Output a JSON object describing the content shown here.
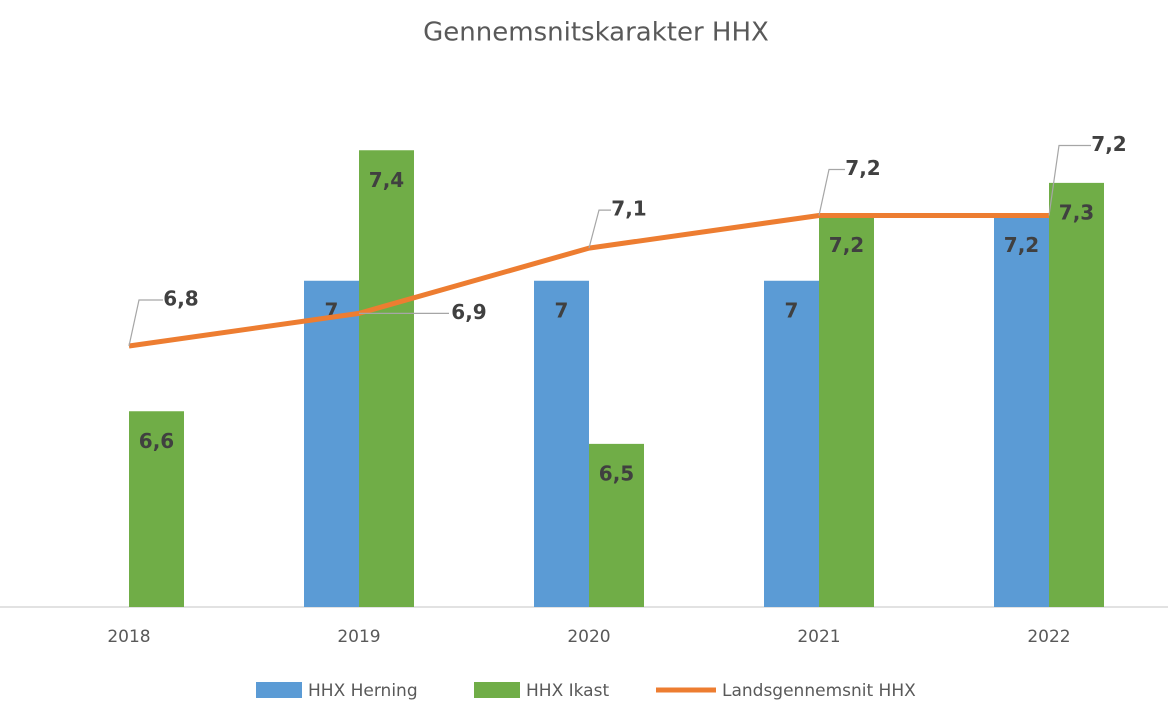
{
  "chart_data": {
    "type": "bar",
    "title": "Gennemsnitskarakter HHX",
    "categories": [
      "2018",
      "2019",
      "2020",
      "2021",
      "2022"
    ],
    "ylim": [
      6,
      7.6
    ],
    "series": [
      {
        "name": "HHX Herning",
        "type": "bar",
        "color": "#5b9bd5",
        "values": [
          null,
          7,
          7,
          7,
          7.2
        ],
        "value_labels": [
          null,
          "7",
          "7",
          "7",
          "7,2"
        ]
      },
      {
        "name": "HHX Ikast",
        "type": "bar",
        "color": "#70ad47",
        "values": [
          6.6,
          7.4,
          6.5,
          7.2,
          7.3
        ],
        "value_labels": [
          "6,6",
          "7,4",
          "6,5",
          "7,2",
          "7,3"
        ]
      },
      {
        "name": "Landsgennemsnit HHX",
        "type": "line",
        "color": "#ed7d31",
        "values": [
          6.8,
          6.9,
          7.1,
          7.2,
          7.2
        ],
        "value_labels": [
          "6,8",
          "6,9",
          "7,1",
          "7,2",
          "7,2"
        ]
      }
    ],
    "legend": "bottom"
  }
}
